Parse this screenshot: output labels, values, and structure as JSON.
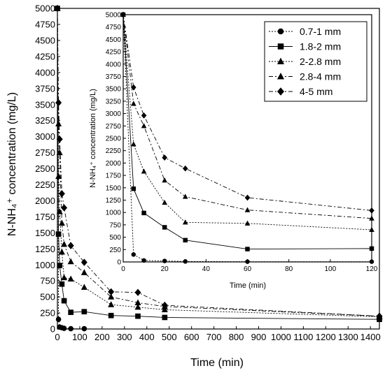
{
  "chart_data": [
    {
      "type": "line",
      "xlabel": "Time (min)",
      "ylabel": "N-NH₄⁺ concentration (mg/L)",
      "xlim": [
        0,
        1440
      ],
      "ylim": [
        0,
        5000
      ],
      "x_ticks": [
        0,
        100,
        200,
        300,
        400,
        500,
        600,
        700,
        800,
        900,
        1000,
        1100,
        1200,
        1300,
        1400
      ],
      "y_ticks": [
        0,
        250,
        500,
        750,
        1000,
        1250,
        1500,
        1750,
        2000,
        2250,
        2500,
        2750,
        3000,
        3250,
        3500,
        3750,
        4000,
        4250,
        4500,
        4750,
        5000
      ],
      "series": [
        {
          "name": "0.7-1 mm",
          "marker": "circle",
          "line": "dot",
          "x": [
            0,
            5,
            10,
            20,
            30,
            60,
            120
          ],
          "y": [
            5000,
            150,
            30,
            20,
            10,
            5,
            5
          ]
        },
        {
          "name": "1.8-2 mm",
          "marker": "square",
          "line": "solid",
          "x": [
            0,
            5,
            10,
            20,
            30,
            60,
            120,
            240,
            360,
            480,
            1440
          ],
          "y": [
            5000,
            1480,
            990,
            700,
            440,
            260,
            270,
            210,
            200,
            180,
            150
          ]
        },
        {
          "name": "2-2.8 mm",
          "marker": "triangle",
          "line": "dot",
          "x": [
            0,
            5,
            10,
            20,
            30,
            60,
            120,
            240,
            360,
            480,
            1440
          ],
          "y": [
            5000,
            2380,
            1830,
            1200,
            800,
            780,
            650,
            380,
            340,
            300,
            190
          ]
        },
        {
          "name": "2.8-4 mm",
          "marker": "triangle",
          "line": "dashdot",
          "x": [
            0,
            5,
            10,
            20,
            30,
            60,
            120,
            240,
            360,
            480,
            1440
          ],
          "y": [
            5000,
            3200,
            2750,
            1650,
            1320,
            1050,
            880,
            500,
            410,
            350,
            200
          ]
        },
        {
          "name": "4-5 mm",
          "marker": "diamond",
          "line": "dashdot",
          "x": [
            0,
            5,
            10,
            20,
            30,
            60,
            120,
            240,
            360,
            480,
            1440
          ],
          "y": [
            5000,
            3530,
            2960,
            2110,
            1890,
            1300,
            1040,
            580,
            570,
            370,
            200
          ]
        }
      ]
    },
    {
      "type": "line",
      "xlabel": "Time (min)",
      "ylabel": "N-NH₄⁺ concentration (mg/L)",
      "xlim": [
        0,
        120
      ],
      "ylim": [
        0,
        5000
      ],
      "x_ticks": [
        0,
        20,
        40,
        60,
        80,
        100,
        120
      ],
      "y_ticks": [
        0,
        250,
        500,
        750,
        1000,
        1250,
        1500,
        1750,
        2000,
        2250,
        2500,
        2750,
        3000,
        3250,
        3500,
        3750,
        4000,
        4250,
        4500,
        4750,
        5000
      ],
      "legend_position": "top-right",
      "series": [
        {
          "name": "0.7-1 mm",
          "marker": "circle",
          "line": "dot",
          "x": [
            0,
            5,
            10,
            20,
            30,
            60,
            120
          ],
          "y": [
            5000,
            150,
            30,
            20,
            10,
            5,
            5
          ]
        },
        {
          "name": "1.8-2 mm",
          "marker": "square",
          "line": "solid",
          "x": [
            0,
            5,
            10,
            20,
            30,
            60,
            120
          ],
          "y": [
            5000,
            1480,
            990,
            700,
            440,
            260,
            270
          ]
        },
        {
          "name": "2-2.8 mm",
          "marker": "triangle",
          "line": "dot",
          "x": [
            0,
            5,
            10,
            20,
            30,
            60,
            120
          ],
          "y": [
            5000,
            2380,
            1830,
            1200,
            800,
            780,
            650
          ]
        },
        {
          "name": "2.8-4 mm",
          "marker": "triangle",
          "line": "dashdot",
          "x": [
            0,
            5,
            10,
            20,
            30,
            60,
            120
          ],
          "y": [
            5000,
            3200,
            2750,
            1650,
            1320,
            1050,
            880
          ]
        },
        {
          "name": "4-5 mm",
          "marker": "diamond",
          "line": "dashdot",
          "x": [
            0,
            5,
            10,
            20,
            30,
            60,
            120
          ],
          "y": [
            5000,
            3530,
            2960,
            2110,
            1890,
            1300,
            1040
          ]
        }
      ]
    }
  ]
}
